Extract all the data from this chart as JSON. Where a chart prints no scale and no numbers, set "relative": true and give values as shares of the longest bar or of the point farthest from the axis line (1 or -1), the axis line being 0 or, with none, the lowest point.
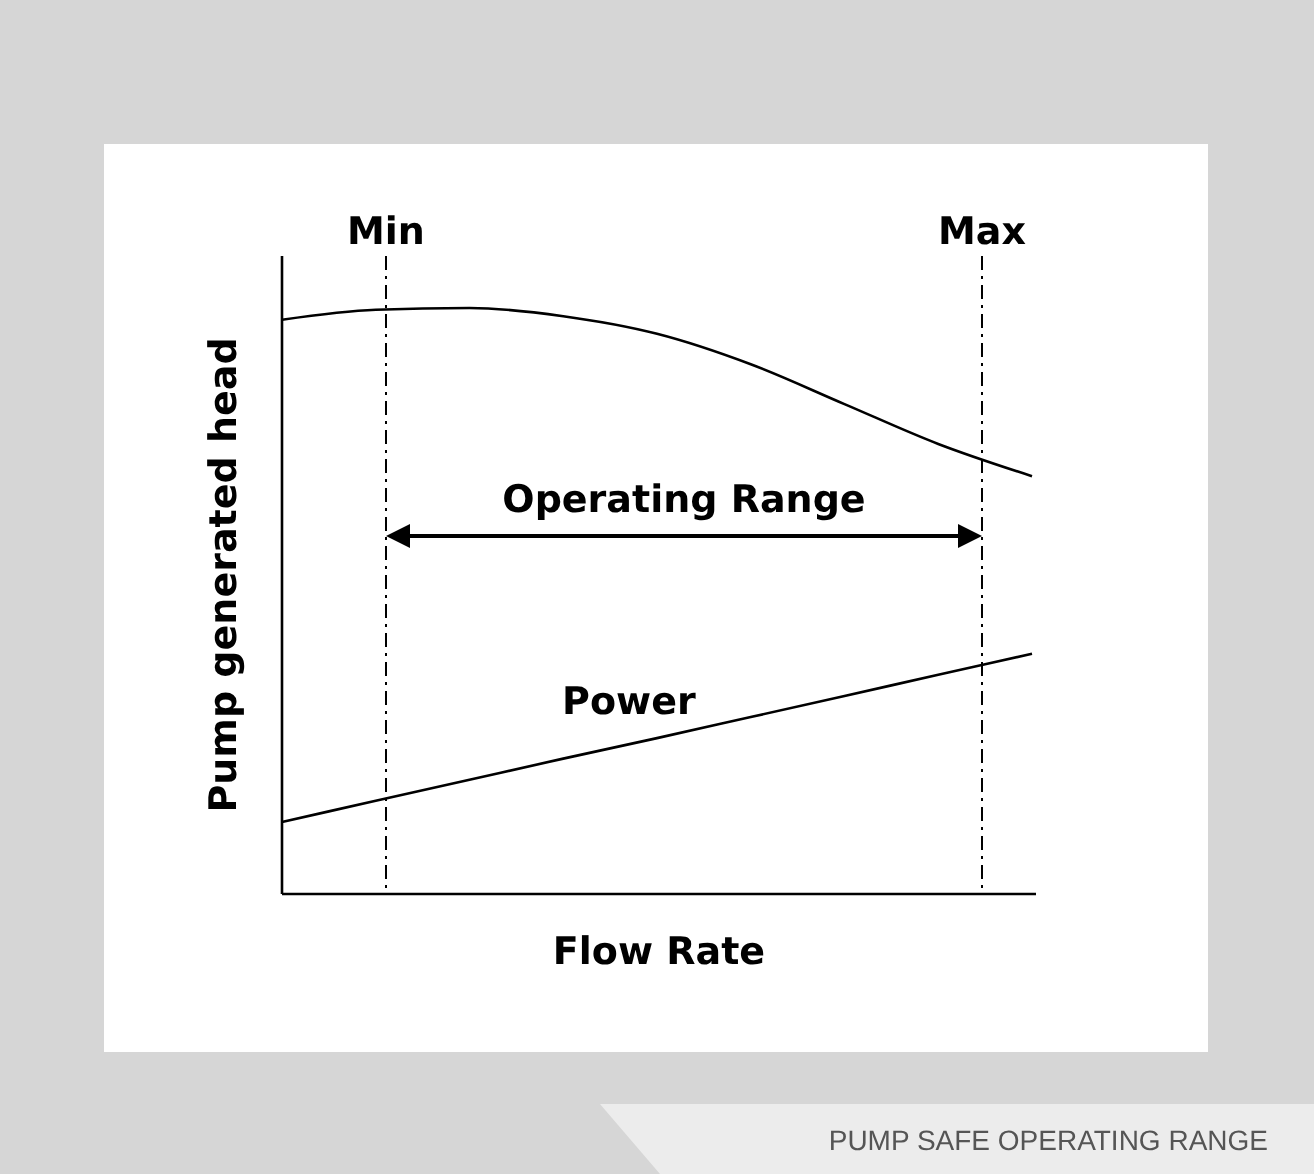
{
  "chart_data": {
    "type": "line",
    "relative": true,
    "xlabel": "Flow Rate",
    "ylabel": "Pump generated head",
    "categories": [
      null,
      null,
      null,
      null,
      null,
      null,
      null,
      null,
      null
    ],
    "series": [
      {
        "color": "#000000",
        "values": [
          0.98,
          0.997,
          1,
          0.986,
          0.956,
          0.904,
          0.836,
          0.768,
          0.713
        ]
      },
      {
        "name": "Power",
        "color": "#000000",
        "values": [
          0.123,
          0.159,
          0.195,
          0.231,
          0.266,
          0.302,
          0.338,
          0.374,
          0.41
        ]
      }
    ],
    "annotations": [
      "Min",
      "Max",
      "Operating Range",
      "PUMP SAFE OPERATING RANGE"
    ],
    "line_style": "solid",
    "marker": "none"
  }
}
